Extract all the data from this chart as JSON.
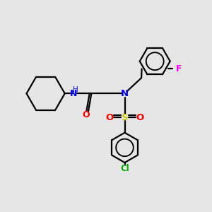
{
  "bg_color": "#e6e6e6",
  "atom_colors": {
    "N": "#0000ff",
    "O": "#ff0000",
    "S": "#cccc00",
    "F": "#ff00ff",
    "Cl": "#00aa00"
  },
  "line_color": "#000000",
  "lw": 1.6
}
